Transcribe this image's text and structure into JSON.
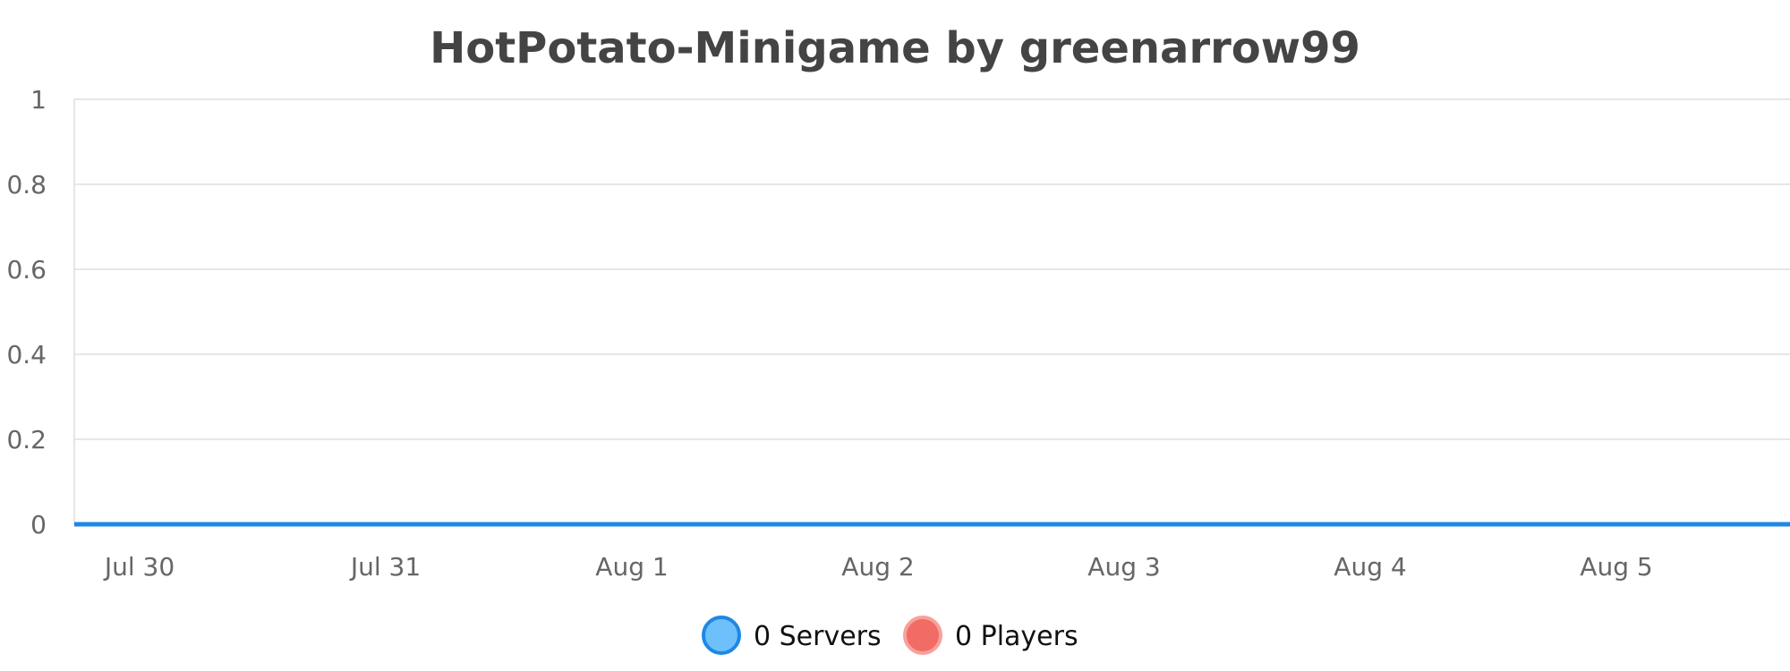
{
  "chart_data": {
    "type": "line",
    "title": "HotPotato-Minigame by greenarrow99",
    "xlabel": "",
    "ylabel": "",
    "categories": [
      "Jul 30",
      "Jul 31",
      "Aug 1",
      "Aug 2",
      "Aug 3",
      "Aug 4",
      "Aug 5"
    ],
    "yticks": [
      "0",
      "0.2",
      "0.4",
      "0.6",
      "0.8",
      "1"
    ],
    "ylim": [
      0,
      1
    ],
    "grid": true,
    "legend_position": "bottom-center",
    "series": [
      {
        "name": "Servers",
        "legend_label": "0 Servers",
        "values": [
          0,
          0,
          0,
          0,
          0,
          0,
          0
        ],
        "color": "#1e88e5",
        "fill": "#6ec0fb"
      },
      {
        "name": "Players",
        "legend_label": "0 Players",
        "values": [
          0,
          0,
          0,
          0,
          0,
          0,
          0
        ],
        "color": "#f7a19a",
        "fill": "#f06c64"
      }
    ]
  }
}
